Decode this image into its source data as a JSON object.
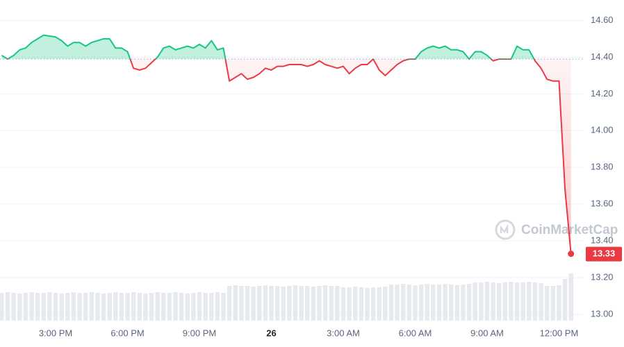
{
  "chart_data": {
    "type": "line",
    "watermark": "CoinMarketCap",
    "x": [
      12.75,
      13,
      13.25,
      13.5,
      13.75,
      14,
      14.25,
      14.5,
      14.75,
      15,
      15.25,
      15.5,
      15.75,
      16,
      16.25,
      16.5,
      16.75,
      17,
      17.25,
      17.5,
      17.75,
      18,
      18.25,
      18.5,
      18.75,
      19,
      19.25,
      19.5,
      19.75,
      20,
      20.25,
      20.5,
      20.75,
      21,
      21.25,
      21.5,
      21.75,
      22,
      22.25,
      22.5,
      22.75,
      23,
      23.25,
      23.5,
      23.75,
      24,
      24.25,
      24.5,
      24.75,
      25,
      25.25,
      25.5,
      25.75,
      26,
      26.25,
      26.5,
      26.75,
      27,
      27.25,
      27.5,
      27.75,
      28,
      28.25,
      28.5,
      28.75,
      29,
      29.25,
      29.5,
      29.75,
      30,
      30.25,
      30.5,
      30.75,
      31,
      31.25,
      31.5,
      31.75,
      32,
      32.25,
      32.5,
      32.75,
      33,
      33.25,
      33.5,
      33.75,
      34,
      34.25,
      34.5,
      34.75,
      35,
      35.25,
      35.5,
      35.75,
      36,
      36.25,
      36.5
    ],
    "values": [
      14.41,
      14.39,
      14.41,
      14.44,
      14.45,
      14.48,
      14.5,
      14.52,
      14.515,
      14.51,
      14.49,
      14.46,
      14.48,
      14.48,
      14.46,
      14.48,
      14.49,
      14.5,
      14.5,
      14.45,
      14.45,
      14.43,
      14.34,
      14.33,
      14.34,
      14.37,
      14.4,
      14.45,
      14.46,
      14.44,
      14.45,
      14.46,
      14.45,
      14.47,
      14.45,
      14.49,
      14.44,
      14.45,
      14.27,
      14.29,
      14.31,
      14.28,
      14.29,
      14.31,
      14.34,
      14.33,
      14.35,
      14.35,
      14.36,
      14.36,
      14.36,
      14.35,
      14.36,
      14.38,
      14.36,
      14.35,
      14.34,
      14.35,
      14.31,
      14.34,
      14.36,
      14.36,
      14.39,
      14.33,
      14.3,
      14.33,
      14.36,
      14.38,
      14.39,
      14.39,
      14.43,
      14.45,
      14.46,
      14.45,
      14.46,
      14.44,
      14.44,
      14.43,
      14.39,
      14.43,
      14.43,
      14.41,
      14.38,
      14.39,
      14.39,
      14.39,
      14.46,
      14.44,
      14.44,
      14.38,
      14.34,
      14.28,
      14.27,
      14.27,
      13.68,
      13.33
    ],
    "volume": [
      40,
      41,
      40,
      39,
      40,
      41,
      40,
      40,
      41,
      40,
      39,
      40,
      41,
      40,
      40,
      41,
      40,
      39,
      40,
      41,
      40,
      40,
      41,
      40,
      39,
      40,
      41,
      40,
      40,
      41,
      40,
      39,
      40,
      41,
      40,
      40,
      41,
      40,
      50,
      51,
      50,
      50,
      49,
      50,
      51,
      50,
      50,
      49,
      50,
      51,
      50,
      50,
      49,
      50,
      51,
      50,
      50,
      48,
      48,
      49,
      48,
      47,
      48,
      48,
      49,
      52,
      52,
      53,
      52,
      51,
      52,
      53,
      52,
      52,
      53,
      52,
      51,
      52,
      53,
      55,
      55,
      56,
      55,
      54,
      55,
      56,
      55,
      55,
      56,
      55,
      54,
      50,
      50,
      51,
      60,
      68
    ],
    "volume_lim": [
      0,
      100
    ],
    "baseline": 14.39,
    "up_color": "#16c784",
    "down_color": "#ea3943",
    "xlim": [
      12.68,
      37.03
    ],
    "ylim": [
      13.0,
      14.7
    ],
    "xticks": [
      {
        "value": 15,
        "label": "3:00 PM"
      },
      {
        "value": 18,
        "label": "6:00 PM"
      },
      {
        "value": 21,
        "label": "9:00 PM"
      },
      {
        "value": 24,
        "label": "26"
      },
      {
        "value": 27,
        "label": "3:00 AM"
      },
      {
        "value": 30,
        "label": "6:00 AM"
      },
      {
        "value": 33,
        "label": "9:00 AM"
      },
      {
        "value": 36,
        "label": "12:00 PM"
      }
    ],
    "yticks": [
      {
        "value": 13.0,
        "label": "13.00"
      },
      {
        "value": 13.2,
        "label": "13.20"
      },
      {
        "value": 13.4,
        "label": "13.40"
      },
      {
        "value": 13.6,
        "label": "13.60"
      },
      {
        "value": 13.8,
        "label": "13.80"
      },
      {
        "value": 14.0,
        "label": "14.00"
      },
      {
        "value": 14.2,
        "label": "14.20"
      },
      {
        "value": 14.4,
        "label": "14.40"
      },
      {
        "value": 14.6,
        "label": "14.60"
      }
    ],
    "grid": true
  }
}
